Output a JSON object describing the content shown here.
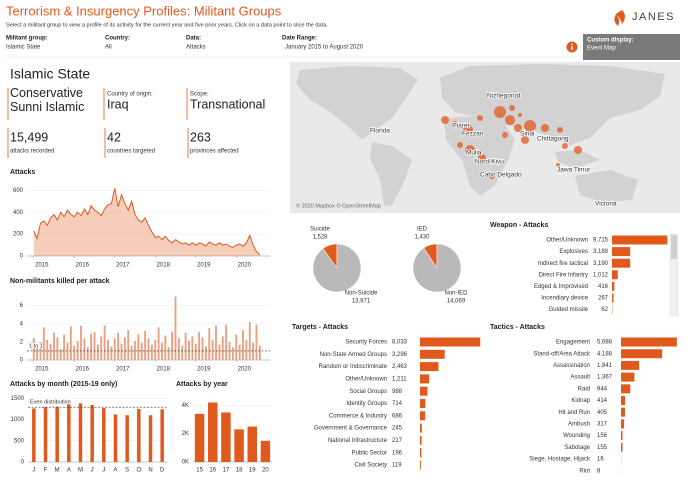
{
  "header": {
    "title": "Terrorism & Insurgency Profiles: Militant Groups",
    "subtitle": "Select a militant group to view a profile of its activity for the current year and five prior years. Click on a data point to slice the data.",
    "logo": "JANES"
  },
  "filters": [
    {
      "label": "Militant group:",
      "value": "Islamic State"
    },
    {
      "label": "Country:",
      "value": "All"
    },
    {
      "label": "Data:",
      "value": "Attacks"
    },
    {
      "label": "Date Range:",
      "value": "January 2015 to August 2020"
    }
  ],
  "custom_display": {
    "label": "Custom display:",
    "value": "Event Map"
  },
  "profile": {
    "name": "Islamic State",
    "ideology": "Conservative Sunni Islamic",
    "origin_label": "Country of origin:",
    "origin": "Iraq",
    "scope_label": "Scope:",
    "scope": "Transnational",
    "stats": [
      {
        "value": "15,499",
        "label": "attacks recorded"
      },
      {
        "value": "42",
        "label": "countries targeted"
      },
      {
        "value": "263",
        "label": "provinces affected"
      }
    ]
  },
  "map": {
    "labels": [
      "Nizhegorod",
      "Florida",
      "Tiaret",
      "Fezzan",
      "Sinai",
      "Chittagong",
      "Mulia",
      "Nord-Kivu",
      "Cabo Delgado",
      "Jawa Timur",
      "Victoria"
    ],
    "credit": "© 2020 Mapbox © OpenStreetMap"
  },
  "chart_data": [
    {
      "type": "area",
      "title": "Attacks",
      "color": "#e05a1e",
      "x": [
        0,
        1,
        2,
        3,
        4,
        5,
        6,
        7,
        8,
        9,
        10,
        11,
        12,
        13,
        14,
        15,
        16,
        17,
        18,
        19,
        20,
        21,
        22,
        23,
        24,
        25,
        26,
        27,
        28,
        29,
        30,
        31,
        32,
        33,
        34,
        35,
        36,
        37,
        38,
        39,
        40,
        41,
        42,
        43,
        44,
        45,
        46,
        47,
        48,
        49,
        50,
        51,
        52,
        53,
        54,
        55,
        56,
        57,
        58,
        59,
        60,
        61,
        62,
        63,
        64,
        65,
        66,
        67
      ],
      "values": [
        230,
        160,
        300,
        320,
        280,
        350,
        380,
        330,
        400,
        360,
        420,
        380,
        360,
        400,
        370,
        430,
        380,
        460,
        420,
        400,
        370,
        430,
        470,
        480,
        620,
        450,
        560,
        480,
        420,
        500,
        380,
        330,
        310,
        350,
        280,
        220,
        170,
        180,
        150,
        180,
        140,
        120,
        150,
        130,
        110,
        120,
        100,
        120,
        100,
        120,
        110,
        90,
        130,
        110,
        100,
        120,
        100,
        110,
        90,
        80,
        100,
        110,
        90,
        120,
        190,
        100,
        40,
        10
      ],
      "xlim": [
        -2,
        70
      ],
      "xticks": [
        {
          "value": 0,
          "label": "2015"
        },
        {
          "value": 12,
          "label": "2016"
        },
        {
          "value": 24,
          "label": "2017"
        },
        {
          "value": 36,
          "label": "2018"
        },
        {
          "value": 48,
          "label": "2019"
        },
        {
          "value": 60,
          "label": "2020"
        }
      ],
      "ylim": [
        0,
        650
      ],
      "yticks": [
        0,
        200,
        400,
        600
      ]
    },
    {
      "type": "bar",
      "title": "Non-militants killed per attack",
      "color": "#e9a080",
      "x": [
        0,
        1,
        2,
        3,
        4,
        5,
        6,
        7,
        8,
        9,
        10,
        11,
        12,
        13,
        14,
        15,
        16,
        17,
        18,
        19,
        20,
        21,
        22,
        23,
        24,
        25,
        26,
        27,
        28,
        29,
        30,
        31,
        32,
        33,
        34,
        35,
        36,
        37,
        38,
        39,
        40,
        41,
        42,
        43,
        44,
        45,
        46,
        47,
        48,
        49,
        50,
        51,
        52,
        53,
        54,
        55,
        56,
        57,
        58,
        59,
        60,
        61,
        62,
        63,
        64,
        65,
        66,
        67
      ],
      "values": [
        2.4,
        1.5,
        2.0,
        3.6,
        2.2,
        1.8,
        3.0,
        2.5,
        1.2,
        2.8,
        1.9,
        3.7,
        1.6,
        2.1,
        3.8,
        2.4,
        1.4,
        2.9,
        3.1,
        1.7,
        2.6,
        3.8,
        2.2,
        1.5,
        2.4,
        3.0,
        1.8,
        2.5,
        3.3,
        1.6,
        2.1,
        2.8,
        1.9,
        3.2,
        2.4,
        1.7,
        2.2,
        3.6,
        1.9,
        2.7,
        1.4,
        3.1,
        7.0,
        2.4,
        1.6,
        3.0,
        2.1,
        2.6,
        1.8,
        3.1,
        2.5,
        1.5,
        3.5,
        2.2,
        3.8,
        1.7,
        2.6,
        3.9,
        2.0,
        1.4,
        2.8,
        1.7,
        3.3,
        2.2,
        4.2,
        1.9,
        3.9,
        1.6
      ],
      "xlim": [
        -2,
        70
      ],
      "xticks": [
        {
          "value": 0,
          "label": "2015"
        },
        {
          "value": 12,
          "label": "2016"
        },
        {
          "value": 24,
          "label": "2017"
        },
        {
          "value": 36,
          "label": "2018"
        },
        {
          "value": 48,
          "label": "2019"
        },
        {
          "value": 60,
          "label": "2020"
        }
      ],
      "ylim": [
        0,
        7.5
      ],
      "yticks": [
        0,
        2,
        4,
        6
      ],
      "reference": {
        "value": 1,
        "label": "1 to 1"
      }
    },
    {
      "type": "bar",
      "title": "Attacks by month (2015-19 only)",
      "color": "#e05a1e",
      "categories": [
        "J",
        "F",
        "M",
        "A",
        "M",
        "J",
        "J",
        "A",
        "S",
        "O",
        "N",
        "D"
      ],
      "values": [
        1260,
        1290,
        1300,
        1420,
        1380,
        1340,
        1270,
        1120,
        1100,
        1250,
        1100,
        1240
      ],
      "ylim": [
        0,
        1600
      ],
      "yticks": [
        0,
        500,
        1000,
        1500
      ],
      "reference": {
        "value": 1290,
        "label": "Even distribution"
      }
    },
    {
      "type": "bar",
      "title": "Attacks by year",
      "color": "#e05a1e",
      "categories": [
        "15",
        "16",
        "17",
        "18",
        "19",
        "20"
      ],
      "values": [
        3400,
        4200,
        3500,
        2300,
        2500,
        1500
      ],
      "ylim": [
        0,
        4800
      ],
      "yticks": [
        {
          "value": 0,
          "label": "0K"
        },
        {
          "value": 2000,
          "label": "2K"
        },
        {
          "value": 4000,
          "label": "4K"
        }
      ]
    },
    {
      "type": "pie",
      "categories": [
        "Suicide",
        "Non-Suicide"
      ],
      "values": [
        1528,
        13971
      ],
      "value_labels": [
        "1,528",
        "13,971"
      ],
      "colors": [
        "#e05a1e",
        "#b9b9b9"
      ]
    },
    {
      "type": "pie",
      "categories": [
        "IED",
        "Non-IED"
      ],
      "values": [
        1430,
        14069
      ],
      "value_labels": [
        "1,430",
        "14,069"
      ],
      "colors": [
        "#e05a1e",
        "#b9b9b9"
      ]
    },
    {
      "type": "hbar",
      "title": "Weapon - Attacks",
      "color": "#e05a1e",
      "categories": [
        "Other/Unknown",
        "Explosives",
        "Indirect fire tactical",
        "Direct Fire Infantry",
        "Edged & Improvised",
        "Incendiary device",
        "Guided missile"
      ],
      "values": [
        9715,
        3188,
        3190,
        1012,
        416,
        267,
        62
      ],
      "value_labels": [
        "9,715",
        "3,188",
        "3,190",
        "1,012",
        "416",
        "267",
        "62"
      ],
      "xlim": [
        0,
        10000
      ]
    },
    {
      "type": "hbar",
      "title": "Targets - Attacks",
      "color": "#e05a1e",
      "categories": [
        "Security Forces",
        "Non-State Armed Groups",
        "Random or Indiscriminate",
        "Other/Unknown",
        "Social Groups",
        "Identity Groups",
        "Commerce & Industry",
        "Government & Governance",
        "National Infrastructure",
        "Public Sector",
        "Civil Society"
      ],
      "values": [
        8033,
        3296,
        2463,
        1211,
        988,
        714,
        686,
        245,
        217,
        196,
        119
      ],
      "value_labels": [
        "8,033",
        "3,296",
        "2,463",
        "1,211",
        "988",
        "714",
        "686",
        "245",
        "217",
        "196",
        "119"
      ],
      "xlim": [
        0,
        8000
      ]
    },
    {
      "type": "hbar",
      "title": "Tactics - Attacks",
      "color": "#e05a1e",
      "categories": [
        "Engagement",
        "Stand-off/Area Attack",
        "Assassination",
        "Assault",
        "Raid",
        "Kidnap",
        "Hit and Run",
        "Ambush",
        "Wounding",
        "Sabotage",
        "Siege, Hostage, Hijack",
        "Riot"
      ],
      "values": [
        5688,
        4188,
        1841,
        1367,
        944,
        414,
        405,
        317,
        156,
        155,
        16,
        8
      ],
      "value_labels": [
        "5,688",
        "4,188",
        "1,841",
        "1,367",
        "944",
        "414",
        "405",
        "317",
        "156",
        "155",
        "16",
        "8"
      ],
      "xlim": [
        0,
        5700
      ]
    }
  ]
}
